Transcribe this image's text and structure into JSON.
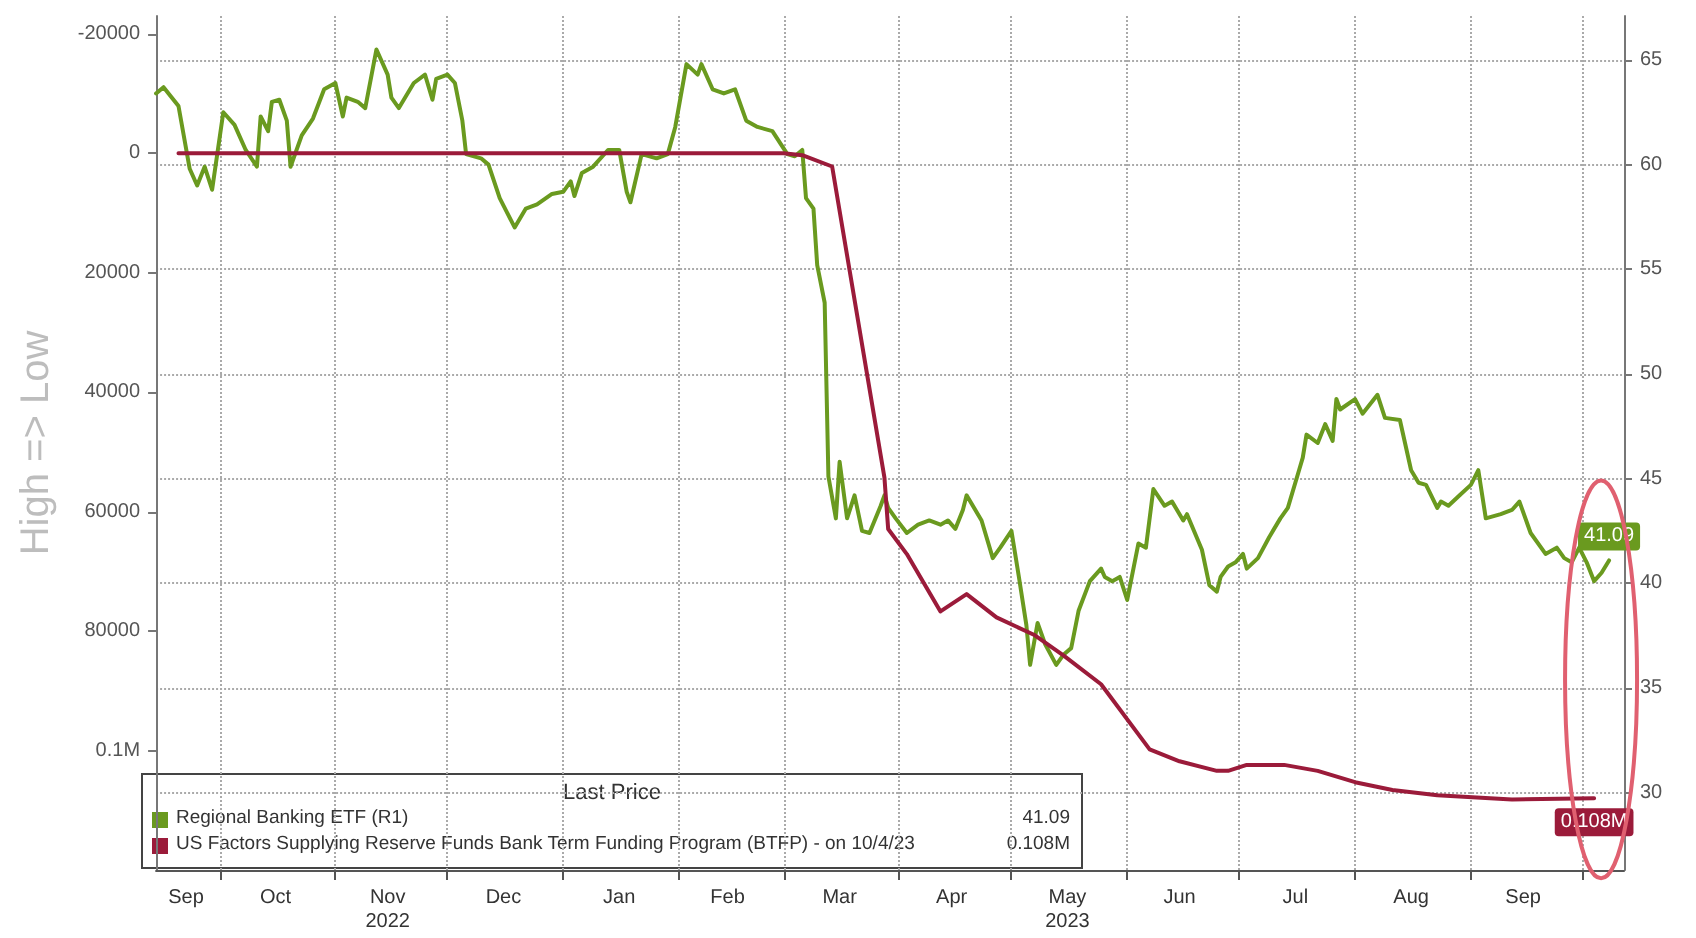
{
  "chart_data": {
    "type": "line",
    "ylabel": "High => Low",
    "legend_title": "Last Price",
    "legend": "bottom left",
    "grid": true,
    "xlim": [
      "2022-09-14",
      "2023-10-12"
    ],
    "xticks": [
      {
        "value": "2022-09-22",
        "label": "Sep"
      },
      {
        "value": "2022-10-01",
        "label": null
      },
      {
        "value": "2022-10-16",
        "label": "Oct"
      },
      {
        "value": "2022-11-01",
        "label": null
      },
      {
        "value": "2022-11-15",
        "label": "Nov\n2022"
      },
      {
        "value": "2022-12-01",
        "label": null
      },
      {
        "value": "2022-12-16",
        "label": "Dec"
      },
      {
        "value": "2023-01-01",
        "label": null
      },
      {
        "value": "2023-01-16",
        "label": "Jan"
      },
      {
        "value": "2023-02-01",
        "label": null
      },
      {
        "value": "2023-02-14",
        "label": "Feb"
      },
      {
        "value": "2023-03-01",
        "label": null
      },
      {
        "value": "2023-03-16",
        "label": "Mar"
      },
      {
        "value": "2023-04-01",
        "label": null
      },
      {
        "value": "2023-04-15",
        "label": "Apr"
      },
      {
        "value": "2023-05-01",
        "label": null
      },
      {
        "value": "2023-05-16",
        "label": "May\n2023"
      },
      {
        "value": "2023-06-01",
        "label": null
      },
      {
        "value": "2023-06-15",
        "label": "Jun"
      },
      {
        "value": "2023-07-01",
        "label": null
      },
      {
        "value": "2023-07-16",
        "label": "Jul"
      },
      {
        "value": "2023-08-01",
        "label": null
      },
      {
        "value": "2023-08-16",
        "label": "Aug"
      },
      {
        "value": "2023-09-01",
        "label": null
      },
      {
        "value": "2023-09-15",
        "label": "Sep"
      },
      {
        "value": "2023-10-01",
        "label": null
      }
    ],
    "ylim": [
      120000,
      -23000
    ],
    "yticks": [
      -20000,
      0,
      20000,
      40000,
      60000,
      80000,
      {
        "value": 100000,
        "label": "0.1M"
      }
    ],
    "y2lim": [
      26.3,
      67.1
    ],
    "y2ticks": [
      30,
      35,
      40,
      45,
      50,
      55,
      60,
      65
    ],
    "series": [
      {
        "name": "Regional Banking ETF (R1)",
        "color": "#6a9a1f",
        "axis": "y2",
        "x": [
          "2022-09-14",
          "2022-09-16",
          "2022-09-20",
          "2022-09-23",
          "2022-09-25",
          "2022-09-27",
          "2022-09-29",
          "2022-10-02",
          "2022-10-05",
          "2022-10-08",
          "2022-10-11",
          "2022-10-12",
          "2022-10-14",
          "2022-10-15",
          "2022-10-17",
          "2022-10-19",
          "2022-10-20",
          "2022-10-23",
          "2022-10-26",
          "2022-10-29",
          "2022-11-01",
          "2022-11-03",
          "2022-11-04",
          "2022-11-07",
          "2022-11-09",
          "2022-11-12",
          "2022-11-15",
          "2022-11-16",
          "2022-11-18",
          "2022-11-22",
          "2022-11-25",
          "2022-11-27",
          "2022-11-28",
          "2022-12-01",
          "2022-12-03",
          "2022-12-05",
          "2022-12-06",
          "2022-12-10",
          "2022-12-12",
          "2022-12-15",
          "2022-12-19",
          "2022-12-22",
          "2022-12-25",
          "2022-12-29",
          "2023-01-01",
          "2023-01-03",
          "2023-01-04",
          "2023-01-06",
          "2023-01-09",
          "2023-01-13",
          "2023-01-16",
          "2023-01-18",
          "2023-01-19",
          "2023-01-22",
          "2023-01-26",
          "2023-01-29",
          "2023-01-31",
          "2023-02-03",
          "2023-02-06",
          "2023-02-07",
          "2023-02-10",
          "2023-02-13",
          "2023-02-16",
          "2023-02-19",
          "2023-02-22",
          "2023-02-26",
          "2023-03-02",
          "2023-03-04",
          "2023-03-06",
          "2023-03-07",
          "2023-03-09",
          "2023-03-10",
          "2023-03-12",
          "2023-03-13",
          "2023-03-15",
          "2023-03-16",
          "2023-03-18",
          "2023-03-20",
          "2023-03-22",
          "2023-03-24",
          "2023-03-27",
          "2023-03-28",
          "2023-03-29",
          "2023-03-31",
          "2023-04-03",
          "2023-04-06",
          "2023-04-09",
          "2023-04-12",
          "2023-04-14",
          "2023-04-16",
          "2023-04-18",
          "2023-04-19",
          "2023-04-23",
          "2023-04-26",
          "2023-04-28",
          "2023-05-01",
          "2023-05-03",
          "2023-05-05",
          "2023-05-06",
          "2023-05-08",
          "2023-05-10",
          "2023-05-13",
          "2023-05-15",
          "2023-05-17",
          "2023-05-19",
          "2023-05-22",
          "2023-05-25",
          "2023-05-26",
          "2023-05-28",
          "2023-05-30",
          "2023-06-01",
          "2023-06-04",
          "2023-06-06",
          "2023-06-08",
          "2023-06-11",
          "2023-06-13",
          "2023-06-16",
          "2023-06-17",
          "2023-06-21",
          "2023-06-23",
          "2023-06-25",
          "2023-06-26",
          "2023-06-28",
          "2023-06-30",
          "2023-07-02",
          "2023-07-03",
          "2023-07-06",
          "2023-07-09",
          "2023-07-12",
          "2023-07-14",
          "2023-07-17",
          "2023-07-18",
          "2023-07-19",
          "2023-07-22",
          "2023-07-24",
          "2023-07-26",
          "2023-07-27",
          "2023-07-28",
          "2023-08-01",
          "2023-08-03",
          "2023-08-07",
          "2023-08-09",
          "2023-08-13",
          "2023-08-16",
          "2023-08-18",
          "2023-08-20",
          "2023-08-23",
          "2023-08-24",
          "2023-08-26",
          "2023-08-29",
          "2023-09-01",
          "2023-09-03",
          "2023-09-05",
          "2023-09-09",
          "2023-09-12",
          "2023-09-14",
          "2023-09-17",
          "2023-09-21",
          "2023-09-24",
          "2023-09-26",
          "2023-09-28",
          "2023-09-30",
          "2023-10-02",
          "2023-10-04",
          "2023-10-06",
          "2023-10-08"
        ],
        "values": [
          63.4,
          63.7,
          62.8,
          59.8,
          59.0,
          59.9,
          58.8,
          62.5,
          61.9,
          60.7,
          59.9,
          62.3,
          61.6,
          63.0,
          63.1,
          62.1,
          59.9,
          61.4,
          62.2,
          63.6,
          63.9,
          62.3,
          63.2,
          63.0,
          62.7,
          65.5,
          64.3,
          63.2,
          62.7,
          63.9,
          64.3,
          63.1,
          64.1,
          64.3,
          63.9,
          62.1,
          60.5,
          60.3,
          60.0,
          58.4,
          57.0,
          57.9,
          58.1,
          58.6,
          58.7,
          59.2,
          58.5,
          59.6,
          59.9,
          60.7,
          60.7,
          58.7,
          58.2,
          60.5,
          60.3,
          60.5,
          61.8,
          64.8,
          64.3,
          64.8,
          63.6,
          63.4,
          63.6,
          62.1,
          61.8,
          61.6,
          60.5,
          60.4,
          60.7,
          58.4,
          57.9,
          55.2,
          53.4,
          45.1,
          43.1,
          45.8,
          43.1,
          44.2,
          42.5,
          42.4,
          43.7,
          44.2,
          43.6,
          43.1,
          42.4,
          42.8,
          43.0,
          42.8,
          43.0,
          42.6,
          43.5,
          44.2,
          43.0,
          41.2,
          41.7,
          42.5,
          40.3,
          38.0,
          36.1,
          38.1,
          37.1,
          36.1,
          36.6,
          36.9,
          38.7,
          40.1,
          40.7,
          40.3,
          40.1,
          40.3,
          39.2,
          41.9,
          41.7,
          44.5,
          43.7,
          43.9,
          43.0,
          43.3,
          41.6,
          39.9,
          39.6,
          40.3,
          40.8,
          41.0,
          41.4,
          40.7,
          41.2,
          42.2,
          43.1,
          43.6,
          45.4,
          46.0,
          47.1,
          46.7,
          47.6,
          46.8,
          48.8,
          48.3,
          48.8,
          48.1,
          49.0,
          47.9,
          47.8,
          45.4,
          44.8,
          44.7,
          43.6,
          43.9,
          43.7,
          44.2,
          44.7,
          45.4,
          43.1,
          43.3,
          43.5,
          43.9,
          42.4,
          41.4,
          41.7,
          41.2,
          41.0,
          41.7,
          41.0,
          40.1,
          40.5,
          41.09
        ],
        "value_labels": [
          null,
          null,
          null,
          null,
          null,
          null,
          null,
          null,
          null,
          null,
          null,
          null,
          null,
          null,
          null,
          null,
          null,
          null,
          null,
          null,
          null,
          null,
          null,
          null,
          null,
          null,
          null,
          null,
          null,
          null,
          null,
          null,
          null,
          null,
          null,
          null,
          null,
          null,
          null,
          null,
          null,
          null,
          null,
          null,
          null,
          null,
          null,
          null,
          null,
          null,
          null,
          null,
          null,
          null,
          null,
          null,
          null,
          null,
          null,
          null,
          null,
          null,
          null,
          null,
          null,
          null,
          null,
          null,
          null,
          null,
          null,
          null,
          null,
          null,
          null,
          null,
          null,
          null,
          null,
          null,
          null,
          null,
          null,
          null,
          null,
          null,
          null,
          null,
          null,
          null,
          null,
          null,
          null,
          null,
          null,
          null,
          null,
          null,
          null,
          null,
          null,
          null,
          null,
          null,
          null,
          null,
          null,
          null,
          null,
          null,
          null,
          null,
          null,
          null,
          null,
          null,
          null,
          null,
          null,
          null,
          null,
          null,
          null,
          null,
          null,
          null,
          null,
          null,
          null,
          null,
          null,
          null,
          null,
          null,
          null,
          null,
          null,
          null,
          null,
          null,
          null,
          null,
          null,
          null,
          null,
          null,
          null,
          null,
          null,
          null,
          null,
          null,
          null,
          null,
          null,
          null,
          null,
          null,
          null,
          null,
          null,
          null,
          null,
          null,
          null,
          "41.09"
        ]
      },
      {
        "name": "US Factors Supplying Reserve Funds Bank Term Funding Program (BTFP) - on 10/4/23",
        "color": "#9b1b3a",
        "axis": "y",
        "x": [
          "2022-09-20",
          "2023-03-01",
          "2023-03-06",
          "2023-03-14",
          "2023-03-28",
          "2023-03-29",
          "2023-04-03",
          "2023-04-12",
          "2023-04-19",
          "2023-04-27",
          "2023-05-07",
          "2023-05-15",
          "2023-05-25",
          "2023-06-07",
          "2023-06-15",
          "2023-06-25",
          "2023-06-28",
          "2023-07-03",
          "2023-07-13",
          "2023-07-22",
          "2023-08-01",
          "2023-08-11",
          "2023-08-23",
          "2023-09-12",
          "2023-10-04"
        ],
        "values": [
          0,
          0,
          300,
          2200,
          54300,
          62900,
          67100,
          76700,
          73800,
          77700,
          80600,
          84100,
          88900,
          99800,
          101800,
          103400,
          103400,
          102400,
          102400,
          103400,
          105300,
          106600,
          107500,
          108200,
          108000
        ],
        "value_labels": [
          null,
          null,
          null,
          null,
          null,
          null,
          null,
          null,
          null,
          null,
          null,
          null,
          null,
          null,
          null,
          null,
          null,
          null,
          null,
          null,
          null,
          null,
          null,
          null,
          "0.108M"
        ]
      }
    ]
  }
}
